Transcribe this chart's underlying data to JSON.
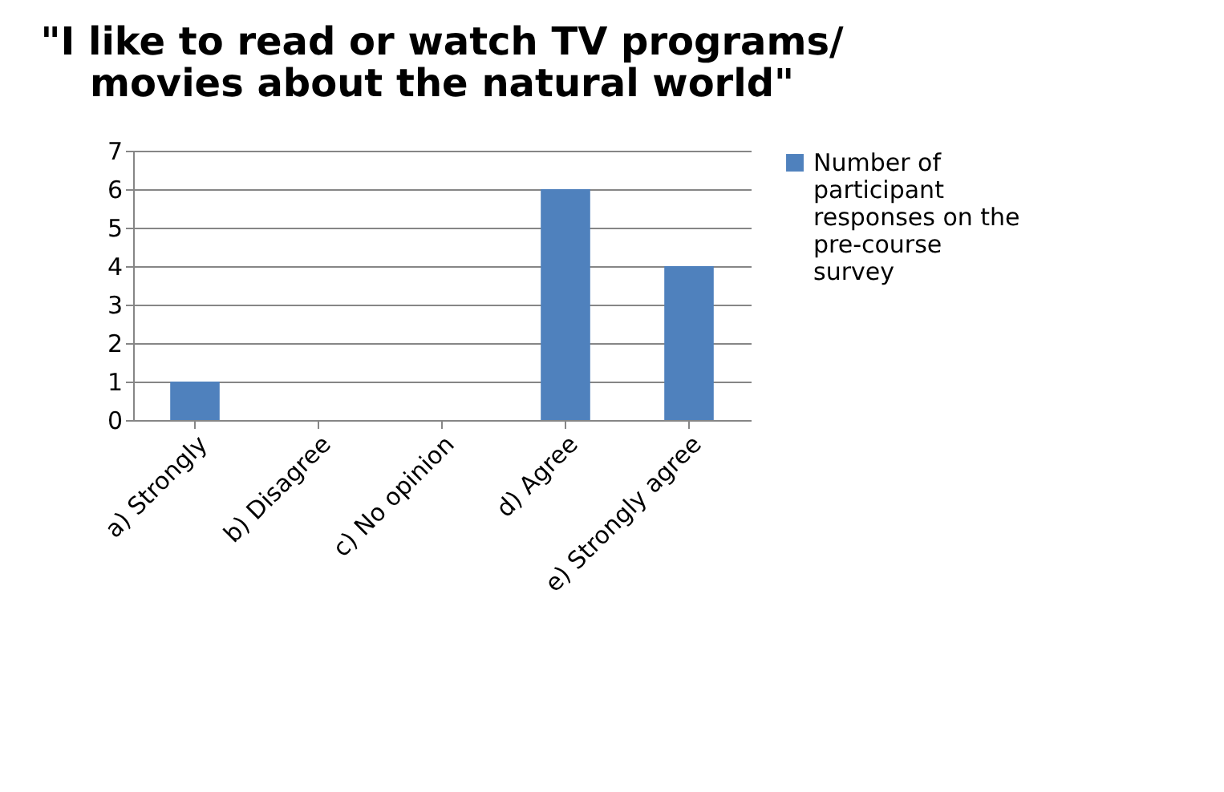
{
  "chart_data": {
    "type": "bar",
    "title": "\"I like to read or watch TV programs/ movies about the natural world\"",
    "categories": [
      "a) Strongly",
      "b) Disagree",
      "c) No opinion",
      "d) Agree",
      "e) Strongly agree"
    ],
    "series": [
      {
        "name": "Number of participant responses on the pre-course survey",
        "color": "#4f81bd",
        "values": [
          1,
          0,
          0,
          6,
          4
        ]
      }
    ],
    "ylim": [
      0,
      7
    ],
    "yticks": [
      0,
      1,
      2,
      3,
      4,
      5,
      6,
      7
    ],
    "grid": "y",
    "legend": "right"
  }
}
